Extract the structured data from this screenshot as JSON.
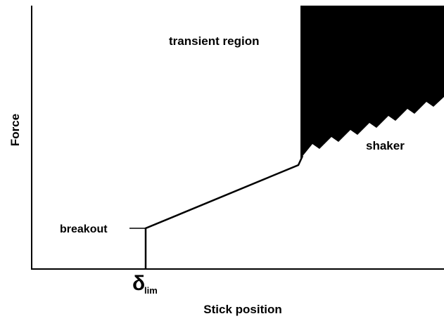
{
  "axis_labels": {
    "y": "Force",
    "x": "Stick position"
  },
  "labels": {
    "transient": "transient region",
    "shaker": "shaker",
    "breakout": "breakout",
    "delta": "δ",
    "delta_sub": "lim"
  }
}
